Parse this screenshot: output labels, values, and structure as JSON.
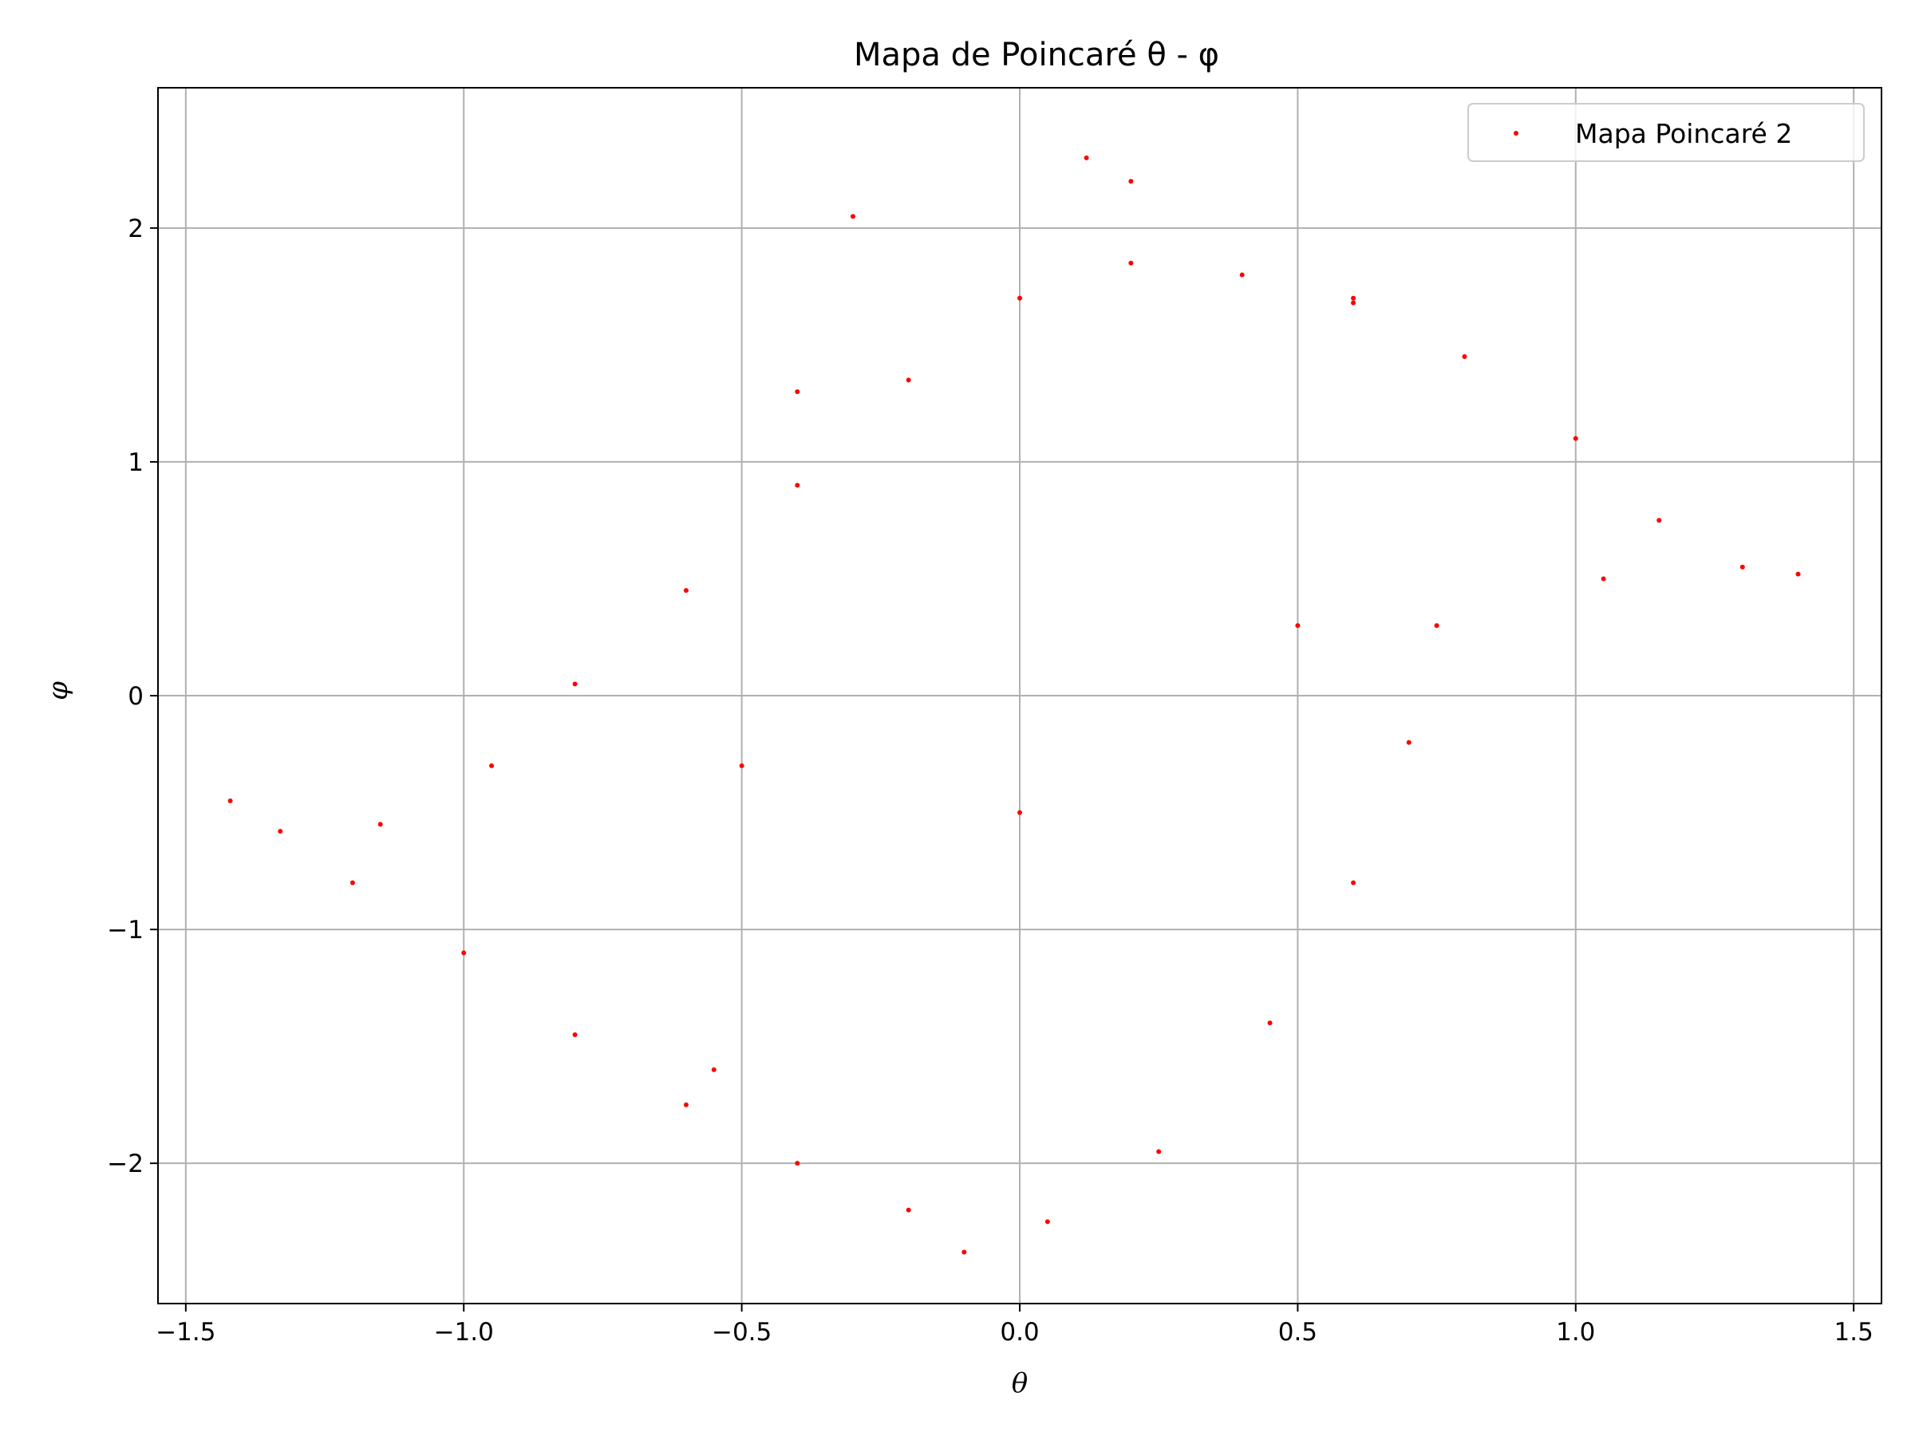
{
  "chart_data": {
    "type": "scatter",
    "title": "Mapa de Poincaré θ - φ",
    "xlabel": "θ",
    "ylabel": "φ",
    "xlim": [
      -1.55,
      1.55
    ],
    "ylim": [
      -2.6,
      2.6
    ],
    "x_ticks": [
      -1.5,
      -1.0,
      -0.5,
      0.0,
      0.5,
      1.0,
      1.5
    ],
    "x_tick_labels": [
      "−1.5",
      "−1.0",
      "−0.5",
      "0.0",
      "0.5",
      "1.0",
      "1.5"
    ],
    "y_ticks": [
      -2,
      -1,
      0,
      1,
      2
    ],
    "y_tick_labels": [
      "−2",
      "−1",
      "0",
      "1",
      "2"
    ],
    "grid": true,
    "legend": {
      "position": "top-right",
      "entries": [
        "Mapa Poincaré 2"
      ]
    },
    "series": [
      {
        "name": "Mapa Poincaré 2",
        "color": "#ff0000",
        "marker": "point",
        "points": [
          [
            1.4,
            0.52
          ],
          [
            1.3,
            0.55
          ],
          [
            1.15,
            0.75
          ],
          [
            1.0,
            1.1
          ],
          [
            0.8,
            1.45
          ],
          [
            0.6,
            1.68
          ],
          [
            0.4,
            1.8
          ],
          [
            0.2,
            1.85
          ],
          [
            0.0,
            1.7
          ],
          [
            -0.2,
            1.35
          ],
          [
            -0.4,
            0.9
          ],
          [
            -0.6,
            0.45
          ],
          [
            -0.8,
            0.05
          ],
          [
            -0.95,
            -0.3
          ],
          [
            -1.15,
            -0.55
          ],
          [
            -1.42,
            -0.45
          ],
          [
            -1.33,
            -0.58
          ],
          [
            -1.2,
            -0.8
          ],
          [
            -1.0,
            -1.1
          ],
          [
            -0.8,
            -1.45
          ],
          [
            -0.6,
            -1.75
          ],
          [
            -0.4,
            -2.0
          ],
          [
            -0.2,
            -2.2
          ],
          [
            -0.1,
            -2.38
          ],
          [
            0.05,
            -2.25
          ],
          [
            0.25,
            -1.95
          ],
          [
            0.45,
            -1.4
          ],
          [
            0.6,
            -0.8
          ],
          [
            0.7,
            -0.2
          ],
          [
            0.75,
            0.3
          ],
          [
            0.2,
            2.2
          ],
          [
            0.12,
            2.3
          ],
          [
            -0.3,
            2.05
          ],
          [
            -0.4,
            1.3
          ],
          [
            0.6,
            1.7
          ],
          [
            1.05,
            0.5
          ],
          [
            -0.55,
            -1.6
          ],
          [
            0.0,
            -0.5
          ],
          [
            0.5,
            0.3
          ],
          [
            -0.5,
            -0.3
          ]
        ]
      }
    ]
  }
}
